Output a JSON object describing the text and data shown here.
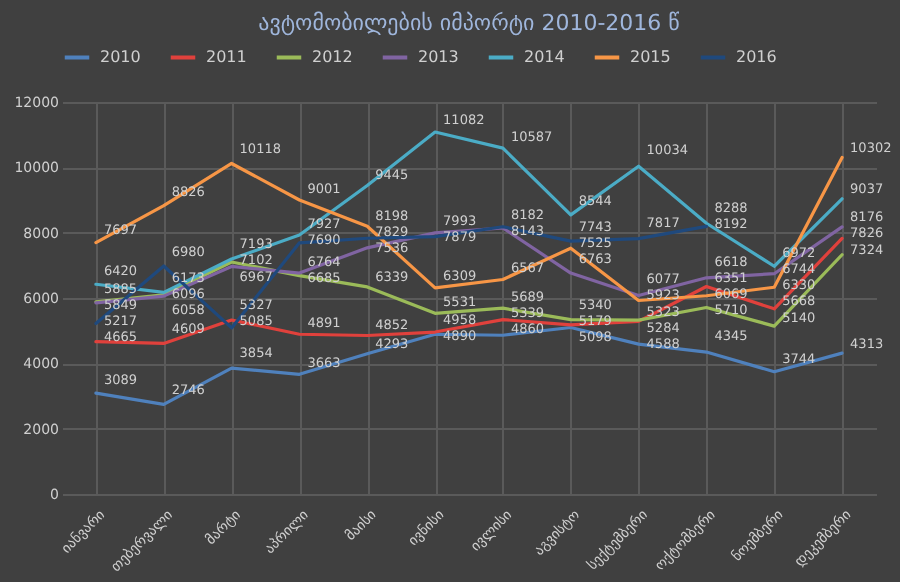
{
  "chart_data": {
    "type": "line",
    "title": "ავტომობილების იმპორტი 2010-2016 წ",
    "categories": [
      "იანვარი",
      "თებერვალი",
      "მარტი",
      "აპრილი",
      "მაისი",
      "ივნისი",
      "ივლისი",
      "აგვისტო",
      "სექტემბერი",
      "ოქტომბერი",
      "ნოემბერი",
      "დეკემბერი"
    ],
    "series": [
      {
        "name": "2010",
        "color": "#4f81bd",
        "values": [
          3089,
          2746,
          3854,
          3663,
          4293,
          4890,
          4860,
          5098,
          4588,
          4345,
          3744,
          4313
        ]
      },
      {
        "name": "2011",
        "color": "#e0413c",
        "values": [
          4665,
          4609,
          5327,
          4891,
          4852,
          4958,
          5339,
          5179,
          5284,
          6351,
          5668,
          7826
        ]
      },
      {
        "name": "2012",
        "color": "#9bbb59",
        "values": [
          5885,
          6096,
          7102,
          6685,
          6339,
          5531,
          5689,
          5340,
          5323,
          5710,
          5140,
          7324
        ]
      },
      {
        "name": "2013",
        "color": "#8064a2",
        "values": [
          5849,
          6058,
          6967,
          6764,
          7536,
          7993,
          8143,
          6763,
          6077,
          6618,
          6744,
          8176
        ]
      },
      {
        "name": "2014",
        "color": "#4bacc6",
        "values": [
          6420,
          6173,
          7193,
          7927,
          9445,
          11082,
          10587,
          8544,
          10034,
          8288,
          6972,
          9037
        ]
      },
      {
        "name": "2015",
        "color": "#f79646",
        "values": [
          7697,
          8826,
          10118,
          9001,
          8198,
          6309,
          6567,
          7525,
          5923,
          6069,
          6330,
          10302
        ]
      },
      {
        "name": "2016",
        "color": "#1f497d",
        "values": [
          5217,
          6980,
          5085,
          7690,
          7829,
          7879,
          8182,
          7743,
          7817,
          8192,
          null,
          null
        ]
      }
    ],
    "ylim": [
      0,
      12000
    ],
    "yticks": [
      0,
      2000,
      4000,
      6000,
      8000,
      10000,
      12000
    ],
    "grid": true,
    "legend": "top",
    "data_labels": true
  }
}
